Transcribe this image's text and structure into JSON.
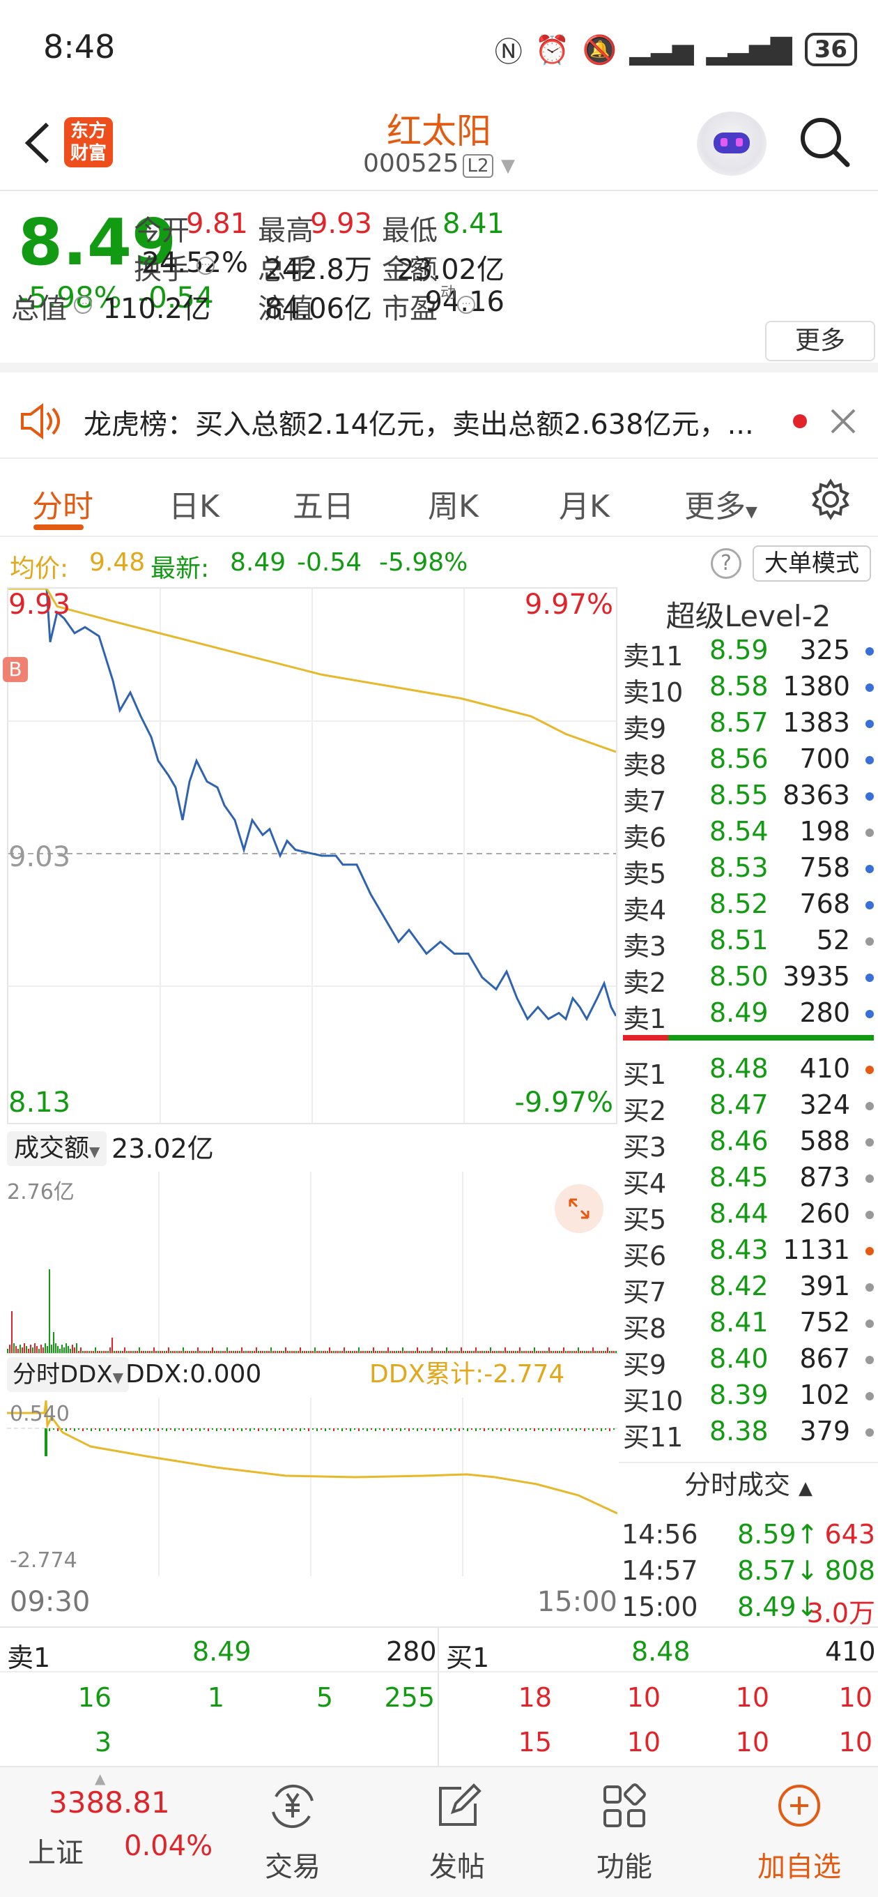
{
  "status_bar": {
    "time": "8:48",
    "battery": "36"
  },
  "header": {
    "back_icon": "back-arrow-icon",
    "logo_line1": "东方",
    "logo_line2": "财富",
    "stock_name": "红太阳",
    "stock_code": "000525",
    "level_badge": "L2"
  },
  "quote": {
    "price": "8.49",
    "change_pct": "-5.98%",
    "change": "-0.54",
    "fields": [
      {
        "label": "今开",
        "value": "9.81",
        "color": "red"
      },
      {
        "label": "最高",
        "value": "9.93",
        "color": "red"
      },
      {
        "label": "最低",
        "value": "8.41",
        "color": "green"
      },
      {
        "label": "换手",
        "value": "24.52%",
        "color": "dark"
      },
      {
        "label": "总手",
        "value": "242.8万",
        "color": "dark"
      },
      {
        "label": "金额",
        "value": "23.02亿",
        "color": "dark"
      },
      {
        "label": "总值",
        "value": "110.2亿",
        "color": "dark"
      },
      {
        "label": "流值",
        "value": "84.06亿",
        "color": "dark"
      },
      {
        "label": "市盈",
        "value": "94.16",
        "color": "dark"
      }
    ],
    "pe_superscript": "动",
    "more_label": "更多"
  },
  "notice": {
    "text": "龙虎榜：买入总额2.14亿元，卖出总额2.638亿元，..."
  },
  "tabs": [
    "分时",
    "日K",
    "五日",
    "周K",
    "月K",
    "更多"
  ],
  "avg_bar": {
    "avg_label": "均价:",
    "avg_value": "9.48",
    "latest_label": "最新:",
    "latest_value": "8.49",
    "latest_change": "-0.54",
    "latest_pct": "-5.98%",
    "big_order_mode": "大单模式"
  },
  "chart": {
    "high_price": "9.93",
    "high_pct": "9.97%",
    "mid_price": "9.03",
    "low_price": "8.13",
    "low_pct": "-9.97%",
    "b_marker": "B"
  },
  "volume_panel": {
    "selector_label": "成交额",
    "total": "23.02亿",
    "max_label": "2.76亿"
  },
  "ddx_panel": {
    "selector_label": "分时DDX",
    "ddx_value": "DDX:0.000",
    "ddx_cumulative": "DDX累计:-2.774",
    "top_label": "0.540",
    "bottom_label": "-2.774"
  },
  "time_axis": {
    "start": "09:30",
    "end": "15:00"
  },
  "orderbook": {
    "title": "超级Level-2",
    "asks": [
      {
        "label": "卖11",
        "price": "8.59",
        "vol": "325",
        "dot": "#3a6fd8"
      },
      {
        "label": "卖10",
        "price": "8.58",
        "vol": "1380",
        "dot": "#3a6fd8"
      },
      {
        "label": "卖9",
        "price": "8.57",
        "vol": "1383",
        "dot": "#3a6fd8"
      },
      {
        "label": "卖8",
        "price": "8.56",
        "vol": "700",
        "dot": "#3a6fd8"
      },
      {
        "label": "卖7",
        "price": "8.55",
        "vol": "8363",
        "dot": "#3a6fd8"
      },
      {
        "label": "卖6",
        "price": "8.54",
        "vol": "198",
        "dot": "#999999"
      },
      {
        "label": "卖5",
        "price": "8.53",
        "vol": "758",
        "dot": "#3a6fd8"
      },
      {
        "label": "卖4",
        "price": "8.52",
        "vol": "768",
        "dot": "#3a6fd8"
      },
      {
        "label": "卖3",
        "price": "8.51",
        "vol": "52",
        "dot": "#999999"
      },
      {
        "label": "卖2",
        "price": "8.50",
        "vol": "3935",
        "dot": "#3a6fd8"
      },
      {
        "label": "卖1",
        "price": "8.49",
        "vol": "280",
        "dot": "#3a6fd8"
      }
    ],
    "bids": [
      {
        "label": "买1",
        "price": "8.48",
        "vol": "410",
        "dot": "#e35a10"
      },
      {
        "label": "买2",
        "price": "8.47",
        "vol": "324",
        "dot": "#999999"
      },
      {
        "label": "买3",
        "price": "8.46",
        "vol": "588",
        "dot": "#999999"
      },
      {
        "label": "买4",
        "price": "8.45",
        "vol": "873",
        "dot": "#999999"
      },
      {
        "label": "买5",
        "price": "8.44",
        "vol": "260",
        "dot": "#999999"
      },
      {
        "label": "买6",
        "price": "8.43",
        "vol": "1131",
        "dot": "#e35a10"
      },
      {
        "label": "买7",
        "price": "8.42",
        "vol": "391",
        "dot": "#999999"
      },
      {
        "label": "买8",
        "price": "8.41",
        "vol": "752",
        "dot": "#999999"
      },
      {
        "label": "买9",
        "price": "8.40",
        "vol": "867",
        "dot": "#999999"
      },
      {
        "label": "买10",
        "price": "8.39",
        "vol": "102",
        "dot": "#999999"
      },
      {
        "label": "买11",
        "price": "8.38",
        "vol": "379",
        "dot": "#999999"
      }
    ],
    "ticks_title": "分时成交",
    "ticks": [
      {
        "time": "14:56",
        "price": "8.59↑",
        "vol": "643",
        "pcolor": "green",
        "vcolor": "red"
      },
      {
        "time": "14:57",
        "price": "8.57↓",
        "vol": "808",
        "pcolor": "green",
        "vcolor": "green"
      },
      {
        "time": "15:00",
        "price": "8.49↓",
        "vol": "3.0万",
        "pcolor": "green",
        "vcolor": "red"
      }
    ]
  },
  "level1": {
    "sell_label": "卖1",
    "sell_price": "8.49",
    "sell_vol": "280",
    "buy_label": "买1",
    "buy_price": "8.48",
    "buy_vol": "410",
    "sell_queue_row1": [
      "16",
      "1",
      "5",
      "255"
    ],
    "sell_queue_row2": [
      "3"
    ],
    "buy_queue_row1": [
      "18",
      "10",
      "10",
      "10"
    ],
    "buy_queue_row2": [
      "15",
      "10",
      "10",
      "10"
    ]
  },
  "bottom_nav": {
    "index_value": "3388.81",
    "index_name": "上证",
    "index_pct": "0.04%",
    "trade": "交易",
    "post": "发帖",
    "features": "功能",
    "add_watch": "加自选"
  },
  "colors": {
    "accent": "#e35a10",
    "up": "#e0242a",
    "down": "#129a12",
    "avg_line": "#e6b82a",
    "price_line": "#2f63b0"
  }
}
